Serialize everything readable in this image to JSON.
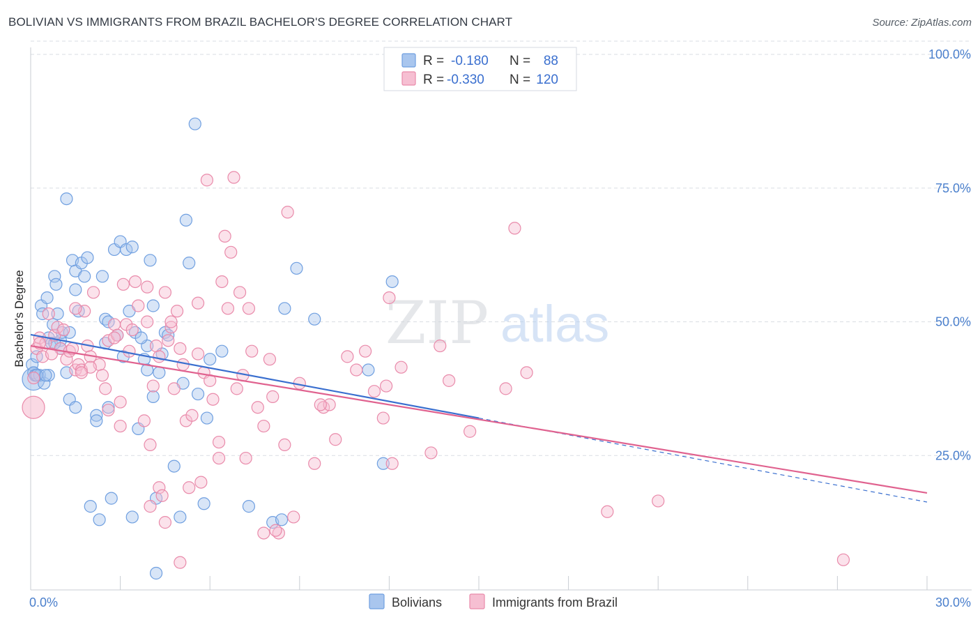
{
  "title": "BOLIVIAN VS IMMIGRANTS FROM BRAZIL BACHELOR'S DEGREE CORRELATION CHART",
  "source": "Source: ZipAtlas.com",
  "watermark": {
    "zip": "ZIP",
    "atlas": "atlas"
  },
  "colors": {
    "blue_fill": "#a9c6ee",
    "blue_stroke": "#6f9fe0",
    "blue_line": "#3a6fcf",
    "pink_fill": "#f6bfd2",
    "pink_stroke": "#e98aaa",
    "pink_line": "#e0628f",
    "tick_label": "#4a7fcc",
    "grid": "#d9dde3"
  },
  "legend": {
    "rows": [
      {
        "r_label": "R =",
        "r_value": "-0.180",
        "n_label": "N =",
        "n_value": "88",
        "series": "blue"
      },
      {
        "r_label": "R =",
        "r_value": "-0.330",
        "n_label": "N =",
        "n_value": "120",
        "series": "pink"
      }
    ]
  },
  "bottom_legend": [
    "Bolivians",
    "Immigrants from Brazil"
  ],
  "chart_data": {
    "type": "scatter",
    "title": "BOLIVIAN VS IMMIGRANTS FROM BRAZIL BACHELOR'S DEGREE CORRELATION CHART",
    "xlabel": "",
    "ylabel": "Bachelor's Degree",
    "xlim": [
      0,
      30
    ],
    "ylim": [
      0,
      100
    ],
    "x_tick_labels": [
      "0.0%",
      "30.0%"
    ],
    "y_ticks": [
      {
        "value": 25,
        "label": "25.0%"
      },
      {
        "value": 50,
        "label": "50.0%"
      },
      {
        "value": 75,
        "label": "75.0%"
      },
      {
        "value": 100,
        "label": "100.0%"
      }
    ],
    "grid": true,
    "series": [
      {
        "name": "Bolivians",
        "color": "blue",
        "R": -0.18,
        "N": 88,
        "trend": {
          "x0": 0,
          "y0": 47.6,
          "x1": 15,
          "y1": 32.0,
          "dash_to_x": 30,
          "dash_to_y": 16.3
        },
        "points": [
          [
            0.0,
            39.3
          ],
          [
            0.05,
            42.0
          ],
          [
            0.1,
            40.5
          ],
          [
            0.15,
            40.0
          ],
          [
            0.2,
            43.5
          ],
          [
            0.3,
            40.0
          ],
          [
            0.35,
            53.0
          ],
          [
            0.4,
            51.5
          ],
          [
            0.45,
            38.5
          ],
          [
            0.55,
            54.5
          ],
          [
            0.6,
            47.0
          ],
          [
            0.7,
            46.0
          ],
          [
            0.75,
            49.5
          ],
          [
            0.8,
            58.5
          ],
          [
            0.85,
            57.0
          ],
          [
            0.9,
            51.5
          ],
          [
            1.0,
            46.5
          ],
          [
            1.05,
            48.0
          ],
          [
            1.2,
            73.0
          ],
          [
            1.3,
            35.5
          ],
          [
            1.4,
            61.5
          ],
          [
            1.5,
            59.5
          ],
          [
            1.5,
            56.0
          ],
          [
            1.6,
            52.0
          ],
          [
            1.7,
            61.0
          ],
          [
            1.8,
            58.5
          ],
          [
            1.9,
            62.0
          ],
          [
            2.2,
            32.5
          ],
          [
            2.4,
            58.5
          ],
          [
            2.5,
            50.5
          ],
          [
            2.5,
            46.0
          ],
          [
            2.6,
            34.0
          ],
          [
            2.8,
            63.5
          ],
          [
            2.9,
            47.5
          ],
          [
            3.0,
            65.0
          ],
          [
            3.1,
            43.5
          ],
          [
            3.2,
            63.5
          ],
          [
            3.3,
            52.0
          ],
          [
            3.4,
            64.0
          ],
          [
            3.5,
            48.0
          ],
          [
            3.6,
            30.0
          ],
          [
            3.8,
            43.0
          ],
          [
            3.9,
            41.0
          ],
          [
            3.9,
            45.5
          ],
          [
            4.0,
            61.5
          ],
          [
            4.1,
            36.0
          ],
          [
            4.1,
            53.0
          ],
          [
            4.3,
            40.5
          ],
          [
            4.4,
            44.0
          ],
          [
            4.5,
            48.0
          ],
          [
            4.6,
            47.5
          ],
          [
            4.8,
            23.0
          ],
          [
            5.0,
            13.5
          ],
          [
            5.1,
            38.5
          ],
          [
            5.2,
            69.0
          ],
          [
            5.3,
            61.0
          ],
          [
            5.5,
            87.0
          ],
          [
            5.6,
            36.5
          ],
          [
            5.8,
            16.0
          ],
          [
            5.9,
            32.0
          ],
          [
            6.0,
            43.0
          ],
          [
            6.4,
            44.5
          ],
          [
            7.3,
            15.5
          ],
          [
            8.1,
            12.5
          ],
          [
            8.4,
            13.0
          ],
          [
            8.5,
            52.5
          ],
          [
            8.9,
            60.0
          ],
          [
            9.5,
            50.5
          ],
          [
            11.3,
            41.0
          ],
          [
            11.8,
            23.5
          ],
          [
            12.1,
            57.5
          ],
          [
            2.0,
            15.5
          ],
          [
            2.3,
            13.0
          ],
          [
            2.7,
            17.0
          ],
          [
            3.4,
            13.5
          ],
          [
            4.2,
            3.0
          ],
          [
            4.2,
            17.0
          ],
          [
            1.5,
            34.0
          ],
          [
            2.2,
            31.5
          ],
          [
            1.2,
            40.5
          ],
          [
            0.6,
            40.0
          ],
          [
            0.2,
            40.0
          ],
          [
            0.5,
            40.0
          ],
          [
            1.0,
            45.0
          ],
          [
            1.3,
            48.0
          ],
          [
            2.6,
            50.0
          ],
          [
            3.7,
            47.0
          ],
          [
            0.8,
            46.0
          ]
        ]
      },
      {
        "name": "Immigrants from Brazil",
        "color": "pink",
        "R": -0.33,
        "N": 120,
        "trend": {
          "x0": 0,
          "y0": 45.5,
          "x1": 30,
          "y1": 18.0
        },
        "points": [
          [
            0.0,
            34.0
          ],
          [
            0.1,
            39.5
          ],
          [
            0.2,
            45.0
          ],
          [
            0.3,
            47.0
          ],
          [
            0.4,
            43.5
          ],
          [
            0.5,
            46.0
          ],
          [
            0.6,
            51.5
          ],
          [
            0.8,
            47.5
          ],
          [
            0.9,
            49.0
          ],
          [
            1.0,
            45.0
          ],
          [
            1.1,
            48.5
          ],
          [
            1.2,
            43.0
          ],
          [
            1.3,
            44.5
          ],
          [
            1.4,
            45.0
          ],
          [
            1.5,
            41.0
          ],
          [
            1.6,
            42.0
          ],
          [
            1.7,
            41.0
          ],
          [
            1.8,
            52.0
          ],
          [
            1.9,
            45.5
          ],
          [
            2.0,
            43.5
          ],
          [
            2.1,
            55.5
          ],
          [
            2.3,
            42.0
          ],
          [
            2.4,
            40.0
          ],
          [
            2.5,
            37.5
          ],
          [
            2.6,
            46.5
          ],
          [
            2.8,
            49.5
          ],
          [
            2.9,
            47.5
          ],
          [
            3.0,
            30.5
          ],
          [
            3.1,
            57.0
          ],
          [
            3.2,
            49.5
          ],
          [
            3.3,
            44.5
          ],
          [
            3.4,
            48.5
          ],
          [
            3.5,
            57.5
          ],
          [
            3.6,
            53.0
          ],
          [
            3.8,
            31.5
          ],
          [
            3.9,
            56.5
          ],
          [
            4.0,
            27.0
          ],
          [
            4.1,
            38.0
          ],
          [
            4.2,
            45.5
          ],
          [
            4.3,
            19.0
          ],
          [
            4.4,
            17.5
          ],
          [
            4.5,
            55.5
          ],
          [
            4.6,
            46.5
          ],
          [
            4.7,
            49.0
          ],
          [
            4.8,
            37.5
          ],
          [
            4.9,
            52.0
          ],
          [
            5.0,
            45.0
          ],
          [
            5.1,
            42.0
          ],
          [
            5.2,
            31.5
          ],
          [
            5.3,
            19.0
          ],
          [
            5.4,
            32.5
          ],
          [
            5.6,
            44.0
          ],
          [
            5.7,
            20.0
          ],
          [
            5.8,
            40.5
          ],
          [
            5.9,
            76.5
          ],
          [
            6.0,
            39.0
          ],
          [
            6.1,
            35.5
          ],
          [
            6.3,
            24.5
          ],
          [
            6.4,
            57.5
          ],
          [
            6.5,
            66.0
          ],
          [
            6.6,
            52.5
          ],
          [
            6.7,
            63.0
          ],
          [
            6.8,
            77.0
          ],
          [
            6.9,
            37.5
          ],
          [
            7.0,
            55.5
          ],
          [
            7.1,
            40.0
          ],
          [
            7.2,
            24.5
          ],
          [
            7.3,
            52.5
          ],
          [
            7.4,
            44.5
          ],
          [
            7.6,
            34.0
          ],
          [
            7.8,
            30.5
          ],
          [
            8.0,
            43.0
          ],
          [
            8.1,
            36.0
          ],
          [
            8.3,
            10.5
          ],
          [
            8.5,
            27.0
          ],
          [
            8.6,
            70.5
          ],
          [
            8.8,
            13.5
          ],
          [
            9.0,
            38.5
          ],
          [
            9.5,
            23.5
          ],
          [
            9.8,
            34.0
          ],
          [
            10.0,
            34.5
          ],
          [
            10.2,
            28.0
          ],
          [
            10.6,
            43.5
          ],
          [
            10.9,
            41.0
          ],
          [
            11.2,
            44.5
          ],
          [
            11.5,
            37.0
          ],
          [
            11.8,
            32.0
          ],
          [
            11.9,
            38.0
          ],
          [
            12.0,
            54.5
          ],
          [
            12.1,
            23.5
          ],
          [
            12.4,
            41.5
          ],
          [
            13.4,
            25.5
          ],
          [
            13.7,
            45.5
          ],
          [
            14.0,
            39.0
          ],
          [
            14.7,
            29.5
          ],
          [
            15.9,
            37.5
          ],
          [
            16.2,
            67.5
          ],
          [
            16.6,
            40.5
          ],
          [
            19.3,
            14.5
          ],
          [
            21.0,
            16.5
          ],
          [
            27.2,
            5.5
          ],
          [
            5.0,
            5.0
          ],
          [
            4.0,
            15.5
          ],
          [
            4.5,
            12.5
          ],
          [
            2.0,
            41.5
          ],
          [
            1.7,
            40.5
          ],
          [
            3.0,
            35.0
          ],
          [
            2.6,
            33.5
          ],
          [
            3.9,
            50.0
          ],
          [
            4.7,
            50.0
          ],
          [
            5.6,
            53.5
          ],
          [
            6.3,
            27.5
          ],
          [
            7.8,
            10.5
          ],
          [
            8.2,
            11.0
          ],
          [
            9.7,
            34.5
          ],
          [
            0.3,
            46.0
          ],
          [
            0.7,
            44.0
          ],
          [
            1.5,
            52.5
          ],
          [
            2.8,
            47.0
          ],
          [
            4.3,
            43.5
          ]
        ]
      }
    ]
  }
}
